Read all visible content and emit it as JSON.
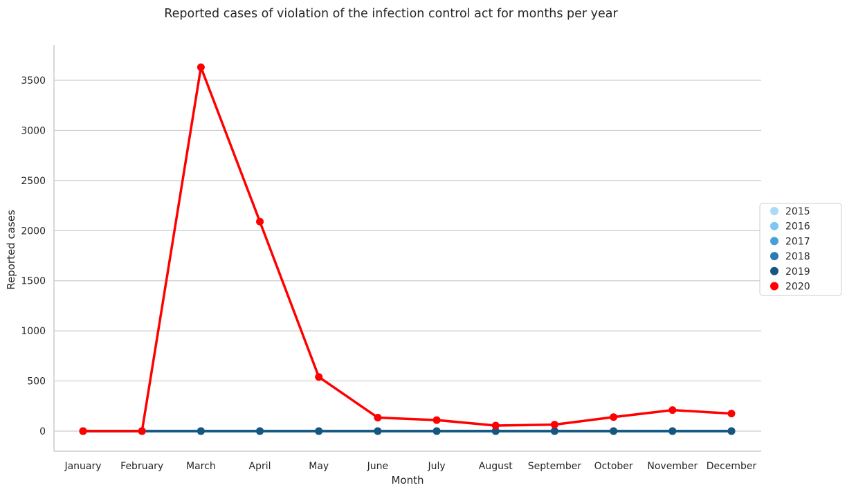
{
  "chart_data": {
    "type": "line",
    "title": "Reported cases of violation of the infection control act for months per year",
    "xlabel": "Month",
    "ylabel": "Reported cases",
    "categories": [
      "January",
      "February",
      "March",
      "April",
      "May",
      "June",
      "July",
      "August",
      "September",
      "October",
      "November",
      "December"
    ],
    "yticks": [
      0,
      500,
      1000,
      1500,
      2000,
      2500,
      3000,
      3500
    ],
    "ylim": [
      -200,
      3850
    ],
    "grid": "horizontal",
    "legend_position": "right",
    "series": [
      {
        "name": "2015",
        "color": "#abd9f8",
        "values": [
          0,
          0,
          0,
          0,
          0,
          0,
          0,
          0,
          0,
          0,
          0,
          0
        ]
      },
      {
        "name": "2016",
        "color": "#7ec5f1",
        "values": [
          0,
          0,
          0,
          0,
          0,
          0,
          0,
          0,
          0,
          0,
          0,
          0
        ]
      },
      {
        "name": "2017",
        "color": "#4a9fd8",
        "values": [
          0,
          0,
          0,
          0,
          0,
          0,
          0,
          0,
          0,
          0,
          0,
          0
        ]
      },
      {
        "name": "2018",
        "color": "#2b7ab3",
        "values": [
          0,
          0,
          0,
          0,
          0,
          0,
          0,
          0,
          0,
          0,
          0,
          0
        ]
      },
      {
        "name": "2019",
        "color": "#17577f",
        "values": [
          0,
          0,
          0,
          0,
          0,
          0,
          0,
          0,
          0,
          0,
          0,
          0
        ]
      },
      {
        "name": "2020",
        "color": "#ff0000",
        "values": [
          0,
          0,
          3630,
          2090,
          540,
          135,
          110,
          55,
          65,
          140,
          210,
          175
        ]
      }
    ]
  }
}
